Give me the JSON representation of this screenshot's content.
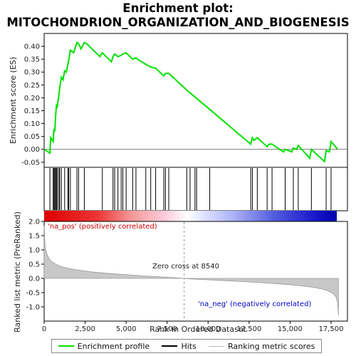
{
  "title_line1": "Enrichment plot:",
  "title_line2": "MITOCHONDRION_ORGANIZATION_AND_BIOGENESIS",
  "chart_data": [
    {
      "type": "line",
      "panel": "enrichment-profile",
      "ylabel": "Enrichment score (ES)",
      "ylim": [
        -0.07,
        0.45
      ],
      "yticks": [
        -0.05,
        0.0,
        0.05,
        0.1,
        0.15,
        0.2,
        0.25,
        0.3,
        0.35,
        0.4
      ],
      "ytick_labels": [
        "-0.05",
        "0.00",
        "0.05",
        "0.10",
        "0.15",
        "0.20",
        "0.25",
        "0.30",
        "0.35",
        "0.40"
      ],
      "xlim": [
        0,
        18500
      ],
      "color": "#00e000",
      "series": [
        {
          "x": [
            0,
            350,
            400,
            550,
            600,
            650,
            700,
            750,
            800,
            900,
            950,
            1050,
            1150,
            1250,
            1350,
            1450,
            1500,
            1600,
            1800,
            2000,
            2100,
            2250,
            2450,
            2600,
            3400,
            3550,
            4100,
            4200,
            4300,
            4500,
            4700,
            4800,
            5000,
            5400,
            5600,
            5700,
            6200,
            6500,
            6800,
            7300,
            7400,
            7600,
            8700,
            10100,
            12600,
            12700,
            12800,
            13000,
            13600,
            13700,
            13900,
            14600,
            14700,
            15100,
            15200,
            15400,
            15500,
            16200,
            16300,
            17100,
            17200,
            17400,
            17500,
            17900
          ],
          "y": [
            0.0,
            -0.015,
            0.045,
            0.03,
            0.08,
            0.07,
            0.13,
            0.17,
            0.165,
            0.21,
            0.24,
            0.28,
            0.27,
            0.305,
            0.3,
            0.33,
            0.345,
            0.385,
            0.375,
            0.415,
            0.41,
            0.39,
            0.415,
            0.41,
            0.36,
            0.375,
            0.34,
            0.36,
            0.37,
            0.36,
            0.365,
            0.37,
            0.375,
            0.35,
            0.355,
            0.35,
            0.33,
            0.32,
            0.315,
            0.285,
            0.295,
            0.295,
            0.23,
            0.155,
            0.02,
            0.045,
            0.035,
            0.045,
            0.01,
            0.02,
            0.02,
            -0.01,
            0.0,
            -0.01,
            0.005,
            0.0,
            0.015,
            -0.035,
            0.0,
            -0.048,
            -0.005,
            -0.01,
            0.03,
            0.0
          ]
        }
      ]
    },
    {
      "type": "hits",
      "panel": "hit-rug",
      "positions": [
        350,
        550,
        600,
        650,
        700,
        750,
        800,
        900,
        950,
        1050,
        1250,
        1450,
        1500,
        1600,
        2000,
        2100,
        2450,
        3550,
        4200,
        4300,
        4500,
        4700,
        4800,
        5000,
        5400,
        5600,
        6200,
        6500,
        6800,
        7300,
        7400,
        7600,
        8700,
        8900,
        9200,
        9300,
        10100,
        12600,
        12700,
        13000,
        13600,
        13900,
        14700,
        15200,
        15500,
        16300,
        17200,
        17500
      ]
    },
    {
      "type": "area",
      "panel": "ranked-list-metric",
      "ylabel": "Ranked list metric (PreRanked)",
      "xlabel": "Rank in Ordered Dataset",
      "ylim": [
        -1.5,
        2.0
      ],
      "yticks": [
        -1.0,
        -0.5,
        0.0,
        0.5,
        1.0,
        1.5,
        2.0
      ],
      "ytick_labels": [
        "-1.0",
        "-0.5",
        "0.0",
        "0.5",
        "1.0",
        "1.5",
        "2.0"
      ],
      "xlim": [
        0,
        18500
      ],
      "xticks": [
        0,
        2500,
        5000,
        7500,
        10000,
        12500,
        15000,
        17500
      ],
      "xtick_labels": [
        "0",
        "2,500",
        "5,000",
        "7,500",
        "10,000",
        "12,500",
        "15,000",
        "17,500"
      ],
      "series": [
        {
          "x": [
            0,
            50,
            100,
            200,
            400,
            700,
            1000,
            1500,
            2000,
            3000,
            4000,
            5000,
            6000,
            7000,
            8000,
            8540,
            9000,
            10000,
            11000,
            12000,
            13000,
            14000,
            15000,
            15500,
            16000,
            16500,
            17000,
            17300,
            17600,
            17800,
            17900,
            17950
          ],
          "y": [
            1.85,
            1.2,
            1.0,
            0.8,
            0.62,
            0.5,
            0.42,
            0.35,
            0.3,
            0.22,
            0.17,
            0.13,
            0.09,
            0.06,
            0.02,
            0.0,
            -0.02,
            -0.05,
            -0.08,
            -0.11,
            -0.14,
            -0.18,
            -0.22,
            -0.25,
            -0.28,
            -0.32,
            -0.38,
            -0.44,
            -0.52,
            -0.65,
            -0.85,
            -1.3
          ]
        }
      ],
      "zero_cross_label": "Zero cross at 8540",
      "zero_cross": 8540,
      "pos_label": "'na_pos' (positively correlated)",
      "neg_label": "'na_neg' (negatively correlated)"
    }
  ],
  "legend": {
    "items": [
      "Enrichment profile",
      "Hits",
      "Ranking metric scores"
    ]
  }
}
